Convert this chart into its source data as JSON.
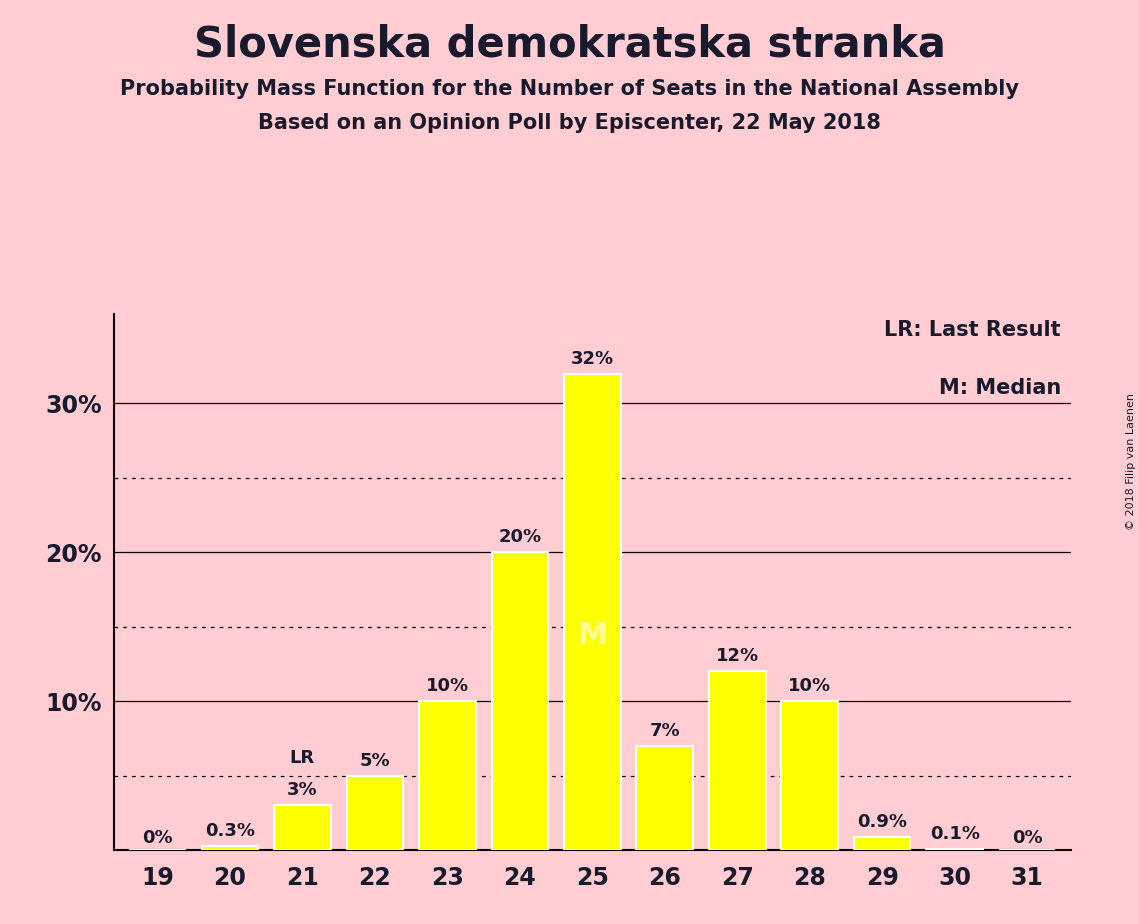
{
  "title": "Slovenska demokratska stranka",
  "subtitle1": "Probability Mass Function for the Number of Seats in the National Assembly",
  "subtitle2": "Based on an Opinion Poll by Episcenter, 22 May 2018",
  "copyright": "© 2018 Filip van Laenen",
  "categories": [
    19,
    20,
    21,
    22,
    23,
    24,
    25,
    26,
    27,
    28,
    29,
    30,
    31
  ],
  "values": [
    0.0,
    0.3,
    3.0,
    5.0,
    10.0,
    20.0,
    32.0,
    7.0,
    12.0,
    10.0,
    0.9,
    0.1,
    0.0
  ],
  "labels": [
    "0%",
    "0.3%",
    "3%",
    "5%",
    "10%",
    "20%",
    "32%",
    "7%",
    "12%",
    "10%",
    "0.9%",
    "0.1%",
    "0%"
  ],
  "bar_color": "#FFFF00",
  "bar_edgecolor": "#FFFFFF",
  "background_color": "#FFCDD2",
  "text_color": "#1a1a2e",
  "median_seat": 25,
  "lr_seat": 21,
  "legend_lr": "LR: Last Result",
  "legend_m": "M: Median",
  "ylim": [
    0,
    36
  ],
  "dotted_gridlines": [
    5.0,
    15.0,
    25.0
  ],
  "solid_gridlines": [
    10.0,
    20.0,
    30.0
  ]
}
